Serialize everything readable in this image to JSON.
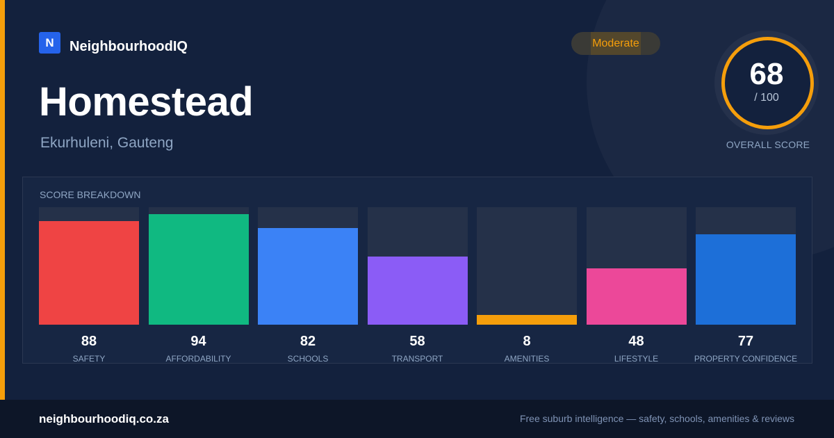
{
  "brand": {
    "logo_letter": "N",
    "name": "NeighbourhoodIQ"
  },
  "badge": {
    "label": "Moderate",
    "color": "#f59e0b"
  },
  "suburb": {
    "name": "Homestead",
    "location": "Ekurhuleni, Gauteng"
  },
  "overall": {
    "score": "68",
    "max": "/ 100",
    "label": "OVERALL SCORE",
    "fraction": 0.68
  },
  "breakdown": {
    "title": "SCORE BREAKDOWN"
  },
  "chart_data": {
    "type": "bar",
    "categories": [
      "SAFETY",
      "AFFORDABILITY",
      "SCHOOLS",
      "TRANSPORT",
      "AMENITIES",
      "LIFESTYLE",
      "PROPERTY CONFIDENCE"
    ],
    "values": [
      88,
      94,
      82,
      58,
      8,
      48,
      77
    ],
    "colors": [
      "#ef4444",
      "#10b981",
      "#3b82f6",
      "#8b5cf6",
      "#f59e0b",
      "#ec4899",
      "#1d6fd8"
    ],
    "ylim": [
      0,
      100
    ]
  },
  "footer": {
    "url": "neighbourhoodiq.co.za",
    "tagline": "Free suburb intelligence — safety, schools, amenities & reviews"
  }
}
